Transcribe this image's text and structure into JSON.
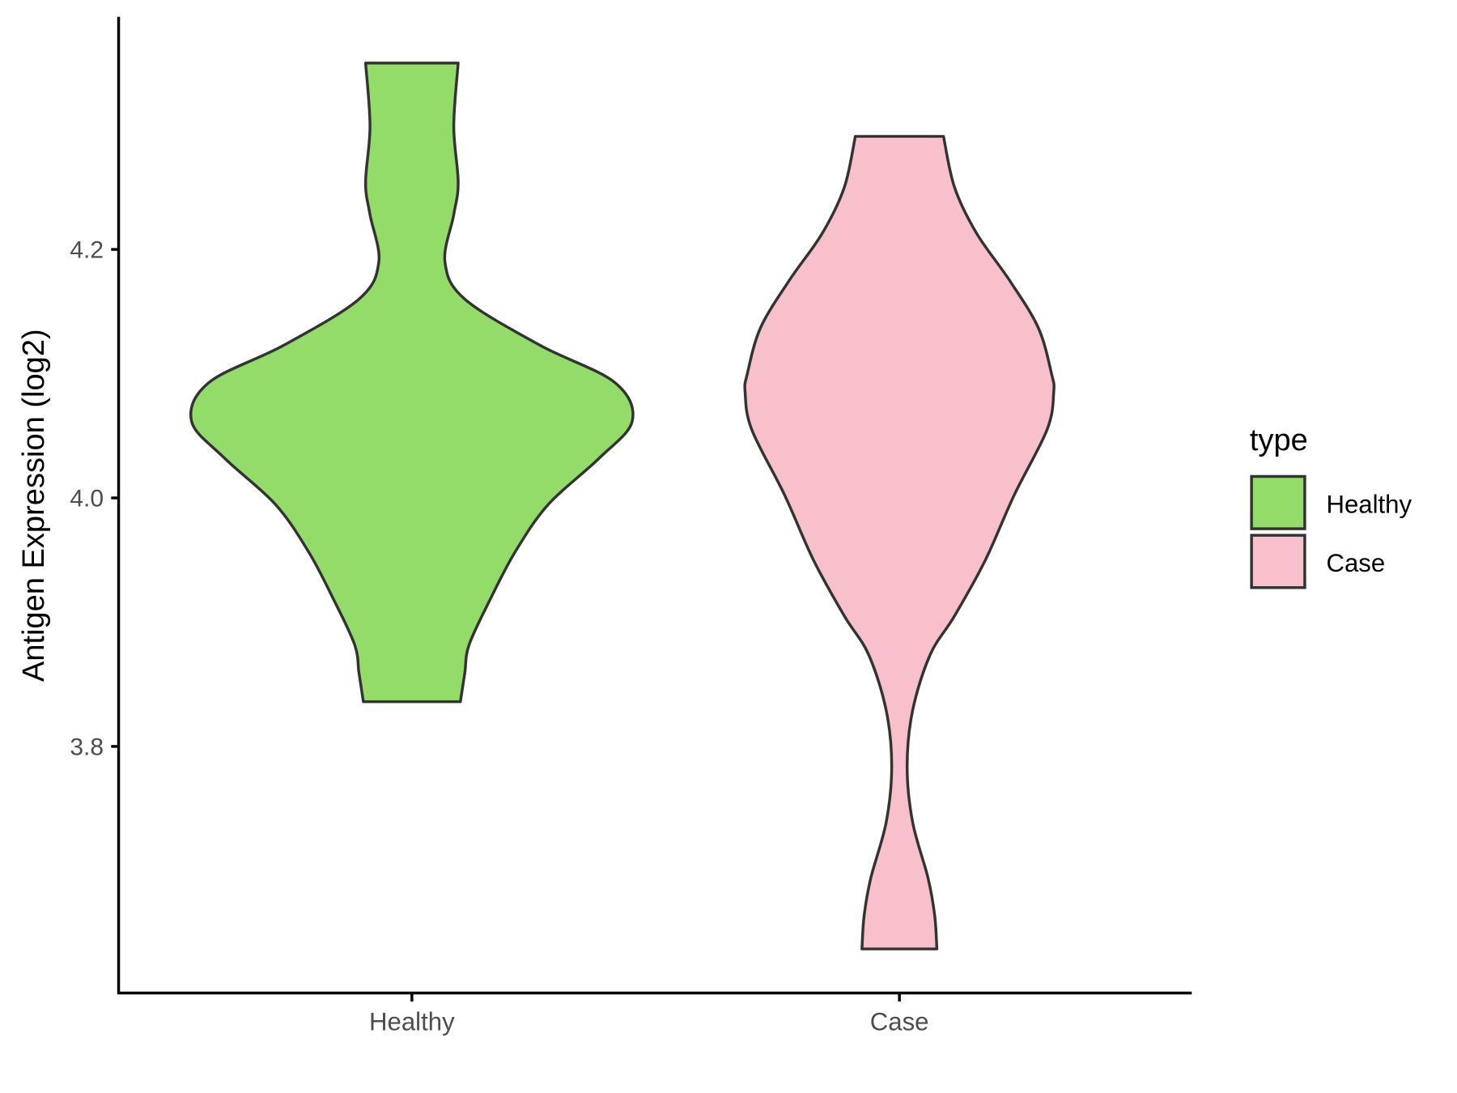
{
  "chart_data": {
    "type": "violin",
    "title": "",
    "xlabel": "",
    "ylabel": "Antigen Expression (log2)",
    "ylim": [
      3.601,
      4.387
    ],
    "yticks": [
      3.8,
      4.0,
      4.2
    ],
    "ytick_labels": [
      "3.8",
      "4.0",
      "4.2"
    ],
    "categories": [
      "Healthy",
      "Case"
    ],
    "grid": false,
    "legend": {
      "title": "type",
      "placement": "right",
      "entries": [
        "Healthy",
        "Case"
      ]
    },
    "series": [
      {
        "name": "Healthy",
        "color": "#93DC6A",
        "min": 3.836,
        "max": 4.35,
        "density_profile": [
          [
            4.35,
            0.21
          ],
          [
            4.299,
            0.19
          ],
          [
            4.254,
            0.21
          ],
          [
            4.228,
            0.19
          ],
          [
            4.19,
            0.15
          ],
          [
            4.16,
            0.24
          ],
          [
            4.123,
            0.58
          ],
          [
            4.093,
            0.92
          ],
          [
            4.062,
            1.0
          ],
          [
            4.032,
            0.85
          ],
          [
            3.995,
            0.62
          ],
          [
            3.957,
            0.47
          ],
          [
            3.92,
            0.36
          ],
          [
            3.882,
            0.26
          ],
          [
            3.859,
            0.24
          ],
          [
            3.836,
            0.22
          ]
        ]
      },
      {
        "name": "Case",
        "color": "#F7C0CB",
        "min": 3.637,
        "max": 4.291,
        "density_profile": [
          [
            4.291,
            0.2
          ],
          [
            4.25,
            0.25
          ],
          [
            4.213,
            0.35
          ],
          [
            4.175,
            0.5
          ],
          [
            4.137,
            0.63
          ],
          [
            4.1,
            0.69
          ],
          [
            4.085,
            0.7
          ],
          [
            4.055,
            0.67
          ],
          [
            4.002,
            0.52
          ],
          [
            3.95,
            0.39
          ],
          [
            3.905,
            0.25
          ],
          [
            3.874,
            0.14
          ],
          [
            3.829,
            0.06
          ],
          [
            3.784,
            0.035
          ],
          [
            3.739,
            0.06
          ],
          [
            3.694,
            0.13
          ],
          [
            3.664,
            0.16
          ],
          [
            3.637,
            0.17
          ]
        ]
      }
    ]
  }
}
